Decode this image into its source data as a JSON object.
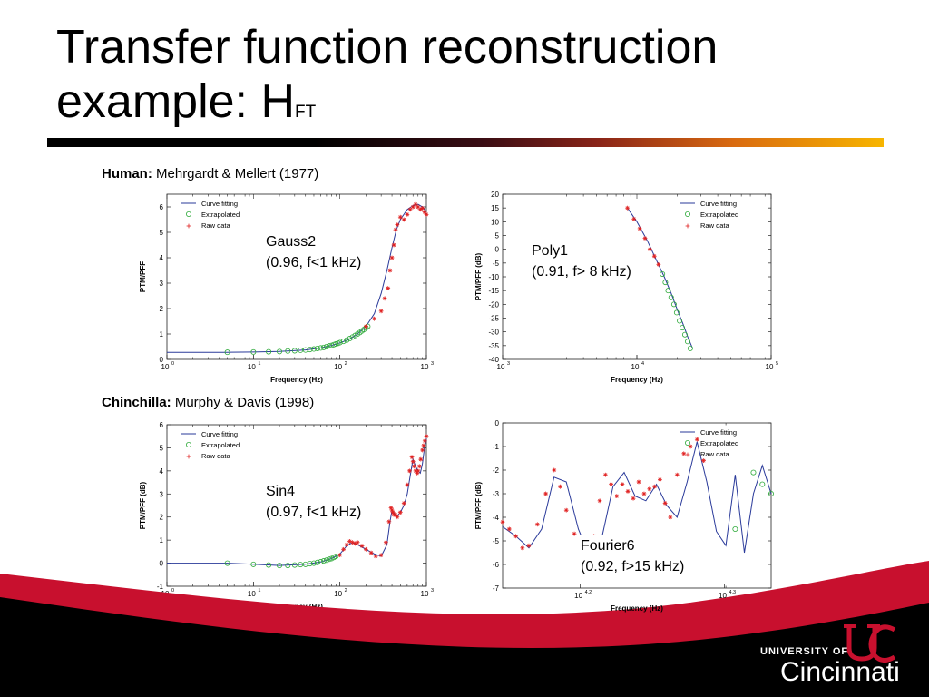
{
  "title": {
    "main_line1": "Transfer function reconstruction",
    "main_line2": "example: H",
    "subscript": "FT"
  },
  "sections": {
    "human": {
      "bold": "Human:",
      "rest": " Mehrgardt & Mellert (1977)"
    },
    "chinchilla": {
      "bold": "Chinchilla:",
      "rest": " Murphy & Davis (1998)"
    }
  },
  "legend": {
    "curve": "Curve fitting",
    "extrap": "Extrapolated",
    "raw": "Raw data"
  },
  "colors": {
    "curve": "#2a3a9a",
    "extrap": "#2eaa3a",
    "raw": "#e02020",
    "accent": "#c8102e"
  },
  "footer": {
    "university_of": "UNIVERSITY OF",
    "name": "Cincinnati"
  },
  "chart_data": [
    {
      "id": "c1",
      "type": "scatter",
      "xscale": "log",
      "xlim": [
        1,
        1000
      ],
      "ylim": [
        0,
        6.5
      ],
      "xlabel": "Frequency (Hz)",
      "ylabel": "PTM/PFF",
      "yticks": [
        0,
        1,
        2,
        3,
        4,
        5,
        6
      ],
      "xticks": [
        {
          "v": 1,
          "b": "10",
          "e": "0"
        },
        {
          "v": 10,
          "b": "10",
          "e": "1"
        },
        {
          "v": 100,
          "b": "10",
          "e": "2"
        },
        {
          "v": 1000,
          "b": "10",
          "e": "3"
        }
      ],
      "annotation": [
        "Gauss2",
        "(0.96, f<1 kHz)"
      ],
      "curve": {
        "x": [
          1,
          5,
          10,
          20,
          40,
          60,
          80,
          100,
          130,
          160,
          200,
          250,
          300,
          350,
          400,
          450,
          500,
          600,
          700,
          800,
          900,
          1000
        ],
        "y": [
          0.28,
          0.28,
          0.29,
          0.31,
          0.37,
          0.45,
          0.55,
          0.65,
          0.8,
          1.0,
          1.3,
          1.8,
          2.6,
          3.5,
          4.4,
          5.1,
          5.5,
          5.9,
          6.05,
          6.1,
          6.0,
          5.8
        ]
      },
      "extrapolated": {
        "x": [
          5,
          10,
          15,
          20,
          25,
          30,
          35,
          40,
          45,
          50,
          55,
          60,
          65,
          70,
          75,
          80,
          85,
          90,
          95,
          100,
          110,
          120,
          130,
          140,
          150,
          160,
          170,
          180,
          190,
          200,
          210
        ],
        "y": [
          0.28,
          0.29,
          0.3,
          0.31,
          0.33,
          0.34,
          0.36,
          0.37,
          0.39,
          0.41,
          0.43,
          0.45,
          0.47,
          0.5,
          0.53,
          0.55,
          0.58,
          0.61,
          0.63,
          0.66,
          0.71,
          0.76,
          0.82,
          0.88,
          0.94,
          1.0,
          1.06,
          1.12,
          1.18,
          1.24,
          1.3
        ]
      },
      "raw": {
        "x": [
          200,
          250,
          300,
          330,
          360,
          380,
          400,
          420,
          440,
          460,
          500,
          550,
          600,
          650,
          700,
          750,
          800,
          850,
          900,
          950,
          1000
        ],
        "y": [
          1.3,
          1.6,
          1.9,
          2.4,
          2.8,
          3.5,
          4.0,
          4.5,
          5.1,
          5.3,
          5.6,
          5.5,
          5.7,
          5.9,
          6.0,
          6.1,
          6.0,
          5.9,
          5.95,
          5.8,
          5.7
        ]
      }
    },
    {
      "id": "c2",
      "type": "scatter",
      "xscale": "log",
      "xlim": [
        1000,
        100000
      ],
      "ylim": [
        -40,
        20
      ],
      "xlabel": "Frequency (Hz)",
      "ylabel": "PTM/PFF (dB)",
      "yticks": [
        -40,
        -35,
        -30,
        -25,
        -20,
        -15,
        -10,
        -5,
        0,
        5,
        10,
        15,
        20
      ],
      "xticks": [
        {
          "v": 1000,
          "b": "10",
          "e": "3"
        },
        {
          "v": 10000,
          "b": "10",
          "e": "4"
        },
        {
          "v": 100000,
          "b": "10",
          "e": "5"
        }
      ],
      "annotation": [
        "Poly1",
        "(0.91, f> 8 kHz)"
      ],
      "curve": {
        "x": [
          8500,
          10000,
          12000,
          14000,
          16000,
          18000,
          20000,
          22000,
          24000,
          26000
        ],
        "y": [
          15,
          10,
          3,
          -4,
          -10,
          -16,
          -22,
          -27,
          -32,
          -36
        ]
      },
      "extrapolated": {
        "x": [
          15500,
          16300,
          17100,
          18000,
          18900,
          19800,
          20800,
          21800,
          22800,
          23900,
          25000
        ],
        "y": [
          -9,
          -12,
          -15,
          -17.5,
          -20,
          -23,
          -26,
          -28.5,
          -31,
          -33.5,
          -36
        ]
      },
      "raw": {
        "x": [
          8500,
          9500,
          10500,
          11500,
          12500,
          13500,
          14500
        ],
        "y": [
          15,
          11,
          7.5,
          4,
          0,
          -2.5,
          -5.5
        ]
      }
    },
    {
      "id": "c3",
      "type": "scatter",
      "xscale": "log",
      "xlim": [
        1,
        1000
      ],
      "ylim": [
        -1,
        6
      ],
      "xlabel": "Frequency (Hz)",
      "ylabel": "PTM/PFF (dB)",
      "yticks": [
        -1,
        0,
        1,
        2,
        3,
        4,
        5,
        6
      ],
      "xticks": [
        {
          "v": 1,
          "b": "10",
          "e": "0"
        },
        {
          "v": 10,
          "b": "10",
          "e": "1"
        },
        {
          "v": 100,
          "b": "10",
          "e": "2"
        },
        {
          "v": 1000,
          "b": "10",
          "e": "3"
        }
      ],
      "annotation": [
        "Sin4",
        "(0.97, f<1 kHz)"
      ],
      "curve": {
        "x": [
          1,
          5,
          10,
          20,
          40,
          60,
          80,
          100,
          120,
          140,
          160,
          200,
          250,
          300,
          350,
          380,
          400,
          420,
          450,
          500,
          550,
          600,
          650,
          700,
          750,
          800,
          850,
          900,
          950,
          1000
        ],
        "y": [
          0.0,
          0.0,
          -0.05,
          -0.1,
          -0.05,
          0.05,
          0.2,
          0.4,
          0.75,
          0.9,
          0.8,
          0.6,
          0.4,
          0.3,
          0.8,
          1.8,
          2.3,
          2.2,
          2.0,
          2.2,
          2.5,
          3.0,
          3.8,
          4.5,
          4.2,
          4.0,
          3.9,
          4.3,
          5.0,
          5.4
        ]
      },
      "extrapolated": {
        "x": [
          5,
          10,
          15,
          20,
          25,
          30,
          35,
          40,
          45,
          50,
          55,
          60,
          65,
          70,
          75,
          80,
          85,
          90
        ],
        "y": [
          0.0,
          -0.05,
          -0.08,
          -0.1,
          -0.1,
          -0.08,
          -0.06,
          -0.05,
          -0.02,
          0.0,
          0.03,
          0.06,
          0.1,
          0.13,
          0.17,
          0.2,
          0.25,
          0.3
        ]
      },
      "raw": {
        "x": [
          100,
          110,
          120,
          130,
          140,
          150,
          160,
          180,
          200,
          230,
          260,
          300,
          340,
          370,
          390,
          400,
          410,
          420,
          440,
          460,
          500,
          550,
          600,
          640,
          680,
          700,
          720,
          750,
          780,
          800,
          830,
          860,
          900,
          930,
          960,
          1000
        ],
        "y": [
          0.35,
          0.6,
          0.8,
          0.95,
          0.9,
          0.85,
          0.9,
          0.75,
          0.6,
          0.45,
          0.3,
          0.35,
          0.9,
          1.8,
          2.4,
          2.3,
          2.2,
          2.1,
          2.1,
          2.0,
          2.2,
          2.6,
          3.4,
          4.0,
          4.6,
          4.4,
          4.2,
          4.0,
          3.9,
          4.0,
          4.2,
          4.5,
          4.9,
          5.1,
          5.3,
          5.5
        ]
      }
    },
    {
      "id": "c4",
      "type": "scatter",
      "xscale": "log",
      "xlim": [
        14000,
        21500
      ],
      "ylim": [
        -7,
        0
      ],
      "xlabel": "Frequency (Hz)",
      "ylabel": "PTM/PFF (dB)",
      "yticks": [
        -7,
        -6,
        -5,
        -4,
        -3,
        -2,
        -1,
        0
      ],
      "xticks": [
        {
          "v": 15849,
          "b": "10",
          "e": "4.2"
        },
        {
          "v": 19953,
          "b": "10",
          "e": "4.3"
        }
      ],
      "annotation": [
        "Fourier6",
        "(0.92, f>15 kHz)"
      ],
      "curve": {
        "x": [
          14000,
          14300,
          14600,
          14900,
          15200,
          15500,
          15800,
          16100,
          16400,
          16700,
          17000,
          17300,
          17600,
          17900,
          18200,
          18500,
          18800,
          19100,
          19400,
          19700,
          20000,
          20300,
          20600,
          20900,
          21200,
          21500
        ],
        "y": [
          -4.4,
          -4.8,
          -5.3,
          -4.5,
          -2.3,
          -2.5,
          -4.5,
          -5.7,
          -4.9,
          -2.7,
          -2.1,
          -3.1,
          -3.3,
          -2.6,
          -3.5,
          -4.0,
          -2.5,
          -0.8,
          -2.5,
          -4.6,
          -5.2,
          -2.2,
          -5.5,
          -3.0,
          -1.8,
          -3.0
        ]
      },
      "extrapolated": {
        "x": [
          20300,
          20900,
          21200,
          21500
        ],
        "y": [
          -4.5,
          -2.1,
          -2.6,
          -3.0
        ]
      },
      "raw": {
        "x": [
          14000,
          14150,
          14300,
          14450,
          14600,
          14800,
          15000,
          15200,
          15350,
          15500,
          15700,
          15900,
          16050,
          16200,
          16350,
          16500,
          16650,
          16800,
          16950,
          17100,
          17250,
          17400,
          17550,
          17700,
          17850,
          18000,
          18150,
          18300,
          18500,
          18700,
          18900,
          19100,
          19300
        ],
        "y": [
          -4.2,
          -4.5,
          -4.8,
          -5.3,
          -5.2,
          -4.3,
          -3.0,
          -2.0,
          -2.7,
          -3.7,
          -4.7,
          -5.6,
          -6.2,
          -4.8,
          -3.3,
          -2.2,
          -2.6,
          -3.1,
          -2.6,
          -2.9,
          -3.2,
          -2.5,
          -3.0,
          -2.8,
          -2.7,
          -2.4,
          -3.4,
          -4.0,
          -2.2,
          -1.3,
          -1.0,
          -0.7,
          -1.6
        ]
      }
    }
  ]
}
